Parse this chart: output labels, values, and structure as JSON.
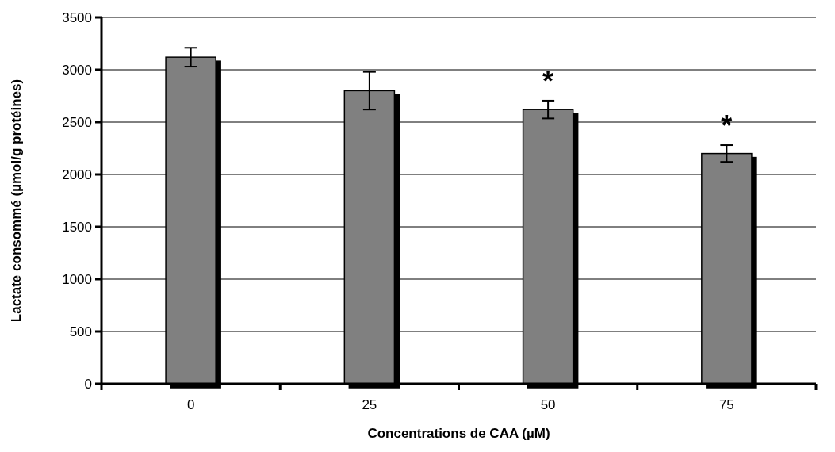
{
  "chart_data": {
    "type": "bar",
    "xlabel": "Concentrations de CAA (µM)",
    "ylabel": "Lactate consommé (µmol/g protéines)",
    "categories": [
      "0",
      "25",
      "50",
      "75"
    ],
    "series": [
      {
        "color": "#808080",
        "values": [
          3120,
          2800,
          2620,
          2200
        ],
        "errors": [
          90,
          180,
          85,
          80
        ]
      }
    ],
    "ylim": [
      0,
      3500
    ],
    "yticks": [
      0,
      500,
      1000,
      1500,
      2000,
      2500,
      3000,
      3500
    ],
    "grid": "y",
    "annotations": [
      "*",
      "*"
    ]
  }
}
